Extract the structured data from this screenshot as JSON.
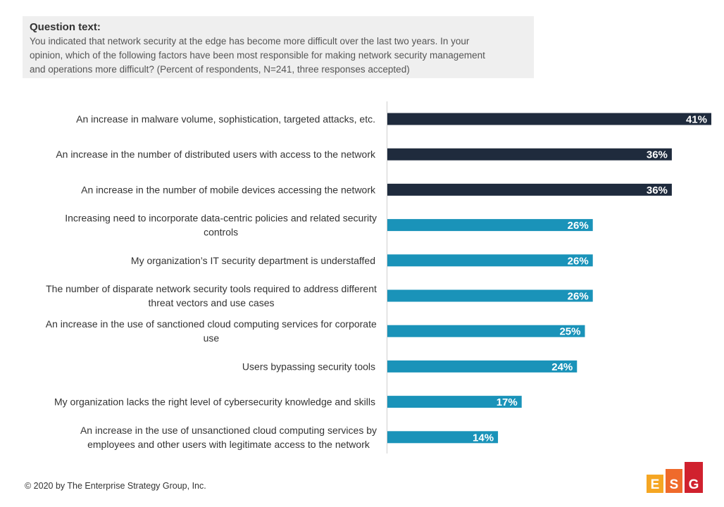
{
  "question": {
    "heading": "Question text:",
    "body_lines": [
      "You indicated that network security at the edge has become more difficult over the last two years.  In your",
      "opinion, which of the following factors have been most responsible for making network security management",
      "and operations more difficult? (Percent of respondents, N=241, three responses accepted)"
    ]
  },
  "chart_data": {
    "type": "bar",
    "orientation": "horizontal",
    "value_format": "percent",
    "categories": [
      [
        "An increase in malware volume, sophistication, targeted attacks, etc."
      ],
      [
        "An increase in the number of distributed users with access to the network"
      ],
      [
        "An increase in the number of mobile devices accessing the network"
      ],
      [
        "Increasing need to incorporate data-centric policies and related security",
        "controls"
      ],
      [
        "My organization’s IT security department is understaffed"
      ],
      [
        "The number of disparate network security tools required to address different",
        "threat vectors and use cases"
      ],
      [
        "An increase in the use of sanctioned cloud computing services for corporate",
        "use"
      ],
      [
        "Users bypassing security tools"
      ],
      [
        "My organization lacks the right level of cybersecurity knowledge and skills"
      ],
      [
        "An increase in the use of unsanctioned cloud computing services by",
        "employees and other users with legitimate access to the network"
      ]
    ],
    "values": [
      41,
      36,
      36,
      26,
      26,
      26,
      25,
      24,
      17,
      14
    ],
    "data_labels": [
      "41%",
      "36%",
      "36%",
      "26%",
      "26%",
      "26%",
      "25%",
      "24%",
      "17%",
      "14%"
    ],
    "xlim": [
      0,
      41
    ],
    "top_n_highlight": 3,
    "colors": {
      "highlight": "#1f2b3d",
      "default": "#1a93b9"
    },
    "grid": false,
    "legend": "none"
  },
  "footer": {
    "copyright": "© 2020 by The Enterprise Strategy Group, Inc."
  },
  "logo": {
    "letters": [
      "E",
      "S",
      "G"
    ],
    "colors": [
      "#f5a623",
      "#ef6a2b",
      "#d0212e"
    ]
  }
}
